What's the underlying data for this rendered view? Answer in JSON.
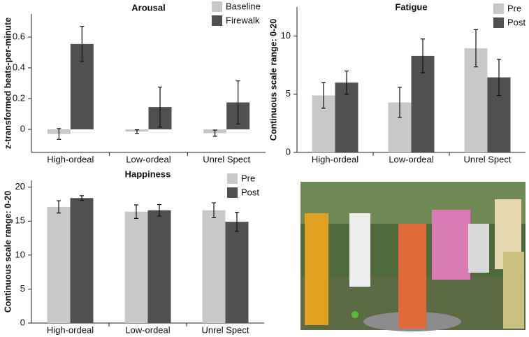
{
  "chart_data": [
    {
      "type": "bar",
      "title": "Arousal",
      "ylabel": "z-transformed beats-per-minute",
      "categories": [
        "High-ordeal",
        "Low-ordeal",
        "Unrel Spect"
      ],
      "series": [
        {
          "name": "Baseline",
          "color": "#c8c8c8",
          "values": [
            -0.03,
            -0.015,
            -0.025
          ],
          "errors": [
            0.035,
            0.012,
            0.02
          ]
        },
        {
          "name": "Firewalk",
          "color": "#505050",
          "values": [
            0.555,
            0.145,
            0.175
          ],
          "errors": [
            0.115,
            0.13,
            0.14
          ]
        }
      ],
      "ylim": [
        -0.15,
        0.75
      ],
      "yticks": [
        0,
        0.2,
        0.4,
        0.6
      ],
      "legend": "upper right"
    },
    {
      "type": "bar",
      "title": "Fatigue",
      "ylabel": "Continuous scale range: 0-20",
      "categories": [
        "High-ordeal",
        "Low-ordeal",
        "Unrel Spect"
      ],
      "series": [
        {
          "name": "Pre",
          "color": "#c8c8c8",
          "values": [
            4.9,
            4.3,
            8.95
          ],
          "errors": [
            1.1,
            1.3,
            1.6
          ]
        },
        {
          "name": "Post",
          "color": "#505050",
          "values": [
            6.0,
            8.3,
            6.45
          ],
          "errors": [
            1.0,
            1.45,
            1.55
          ]
        }
      ],
      "ylim": [
        0,
        12.5
      ],
      "yticks": [
        0,
        5,
        10
      ],
      "legend": "upper right"
    },
    {
      "type": "bar",
      "title": "Happiness",
      "ylabel": "Continuous scale range: 0-20",
      "categories": [
        "High-ordeal",
        "Low-ordeal",
        "Unrel Spect"
      ],
      "series": [
        {
          "name": "Pre",
          "color": "#c8c8c8",
          "values": [
            17.1,
            16.4,
            16.6
          ],
          "errors": [
            0.9,
            1.0,
            1.1
          ]
        },
        {
          "name": "Post",
          "color": "#505050",
          "values": [
            18.4,
            16.6,
            14.9
          ],
          "errors": [
            0.35,
            0.85,
            1.4
          ]
        }
      ],
      "ylim": [
        0,
        21
      ],
      "yticks": [
        0,
        5,
        10,
        15,
        20
      ],
      "legend": "upper right"
    }
  ]
}
